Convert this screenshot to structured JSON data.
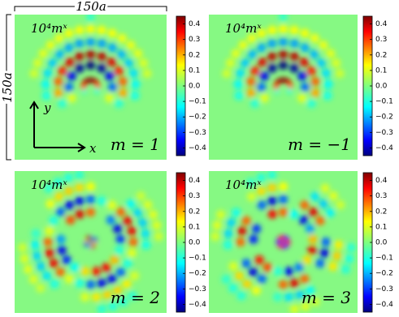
{
  "figure": {
    "scale_label": "150a",
    "axis_labels": {
      "x": "x",
      "y": "y"
    },
    "panels": [
      {
        "quantity": "10⁴mˣ",
        "label": "m = 1",
        "m": 1,
        "ylim": [
          -0.45,
          0.45
        ],
        "yticks": [
          0.4,
          0.3,
          0.2,
          0.1,
          {
            "value": 0,
            "label": "0.0"
          },
          {
            "value": -0.1,
            "label": "−0.1"
          },
          {
            "value": -0.2,
            "label": "−0.2"
          },
          {
            "value": -0.3,
            "label": "−0.3"
          },
          {
            "value": -0.4,
            "label": "−0.4"
          }
        ]
      },
      {
        "quantity": "10⁴mˣ",
        "label": "m = −1",
        "m": -1,
        "ylim": [
          -0.45,
          0.45
        ],
        "yticks": [
          0.4,
          0.3,
          0.2,
          0.1,
          {
            "value": 0,
            "label": "0.0"
          },
          {
            "value": -0.1,
            "label": "−0.1"
          },
          {
            "value": -0.2,
            "label": "−0.2"
          },
          {
            "value": -0.3,
            "label": "−0.3"
          },
          {
            "value": -0.4,
            "label": "−0.4"
          }
        ]
      },
      {
        "quantity": "10⁴mˣ",
        "label": "m = 2",
        "m": 2,
        "ylim": [
          -0.45,
          0.45
        ],
        "yticks": [
          0.4,
          0.3,
          0.2,
          0.1,
          {
            "value": 0,
            "label": "0.0"
          },
          {
            "value": -0.1,
            "label": "−0.1"
          },
          {
            "value": -0.2,
            "label": "−0.2"
          },
          {
            "value": -0.3,
            "label": "−0.3"
          },
          {
            "value": -0.4,
            "label": "−0.4"
          }
        ]
      },
      {
        "quantity": "10⁴mˣ",
        "label": "m = 3",
        "m": 3,
        "ylim": [
          -0.45,
          0.45
        ],
        "yticks": [
          0.4,
          0.3,
          0.2,
          0.1,
          {
            "value": 0,
            "label": "0.0"
          },
          {
            "value": -0.1,
            "label": "−0.1"
          },
          {
            "value": -0.2,
            "label": "−0.2"
          },
          {
            "value": -0.3,
            "label": "−0.3"
          },
          {
            "value": -0.4,
            "label": "−0.4"
          }
        ]
      }
    ]
  }
}
